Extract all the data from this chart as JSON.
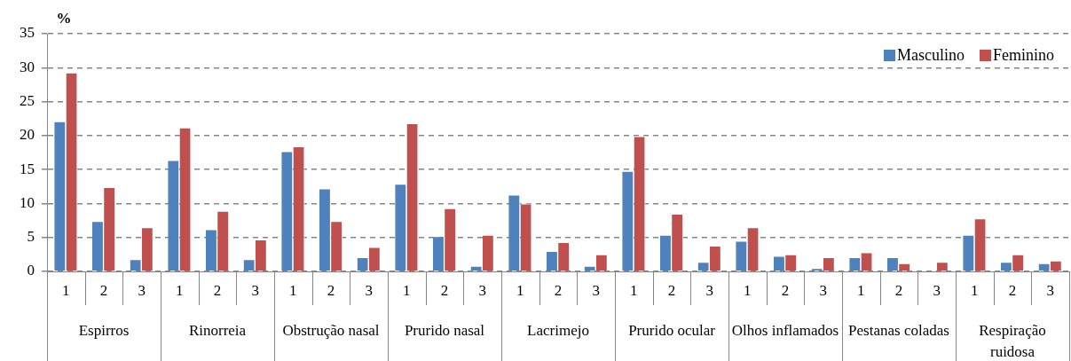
{
  "chart_data": {
    "type": "bar",
    "ylabel": "%",
    "categories": [
      "1",
      "2",
      "3",
      "1",
      "2",
      "3",
      "1",
      "2",
      "3",
      "1",
      "2",
      "3",
      "1",
      "2",
      "3",
      "1",
      "2",
      "3",
      "1",
      "2",
      "3",
      "1",
      "2",
      "3",
      "1",
      "2",
      "3"
    ],
    "annotations": [
      "Espirros",
      "Rinorreia",
      "Obstrução nasal",
      "Prurido nasal",
      "Lacrimejo",
      "Prurido ocular",
      "Olhos inflamados",
      "Pestanas coladas",
      "Respiração ruidosa"
    ],
    "series": [
      {
        "name": "Masculino",
        "color": "#4f81bd",
        "values": [
          22.1,
          7.4,
          1.8,
          16.4,
          6.2,
          1.8,
          17.7,
          12.2,
          2.1,
          12.9,
          5.2,
          0.8,
          11.3,
          3.0,
          0.8,
          14.8,
          5.4,
          1.4,
          4.5,
          2.3,
          0.5,
          2.1,
          2.1,
          0,
          5.4,
          1.4,
          1.2
        ]
      },
      {
        "name": "Feminino",
        "color": "#c0504d",
        "values": [
          29.3,
          12.4,
          6.5,
          21.2,
          8.9,
          4.7,
          18.4,
          7.4,
          3.6,
          21.8,
          9.3,
          5.4,
          10.0,
          4.3,
          2.5,
          19.9,
          8.5,
          3.8,
          6.5,
          2.5,
          2.1,
          2.8,
          1.2,
          1.4,
          7.8,
          2.5,
          1.6
        ]
      }
    ],
    "ylim": [
      0,
      35
    ],
    "yticks": [
      0,
      5,
      10,
      15,
      20,
      25,
      30,
      35
    ],
    "grid": "y",
    "legend": "top right"
  }
}
